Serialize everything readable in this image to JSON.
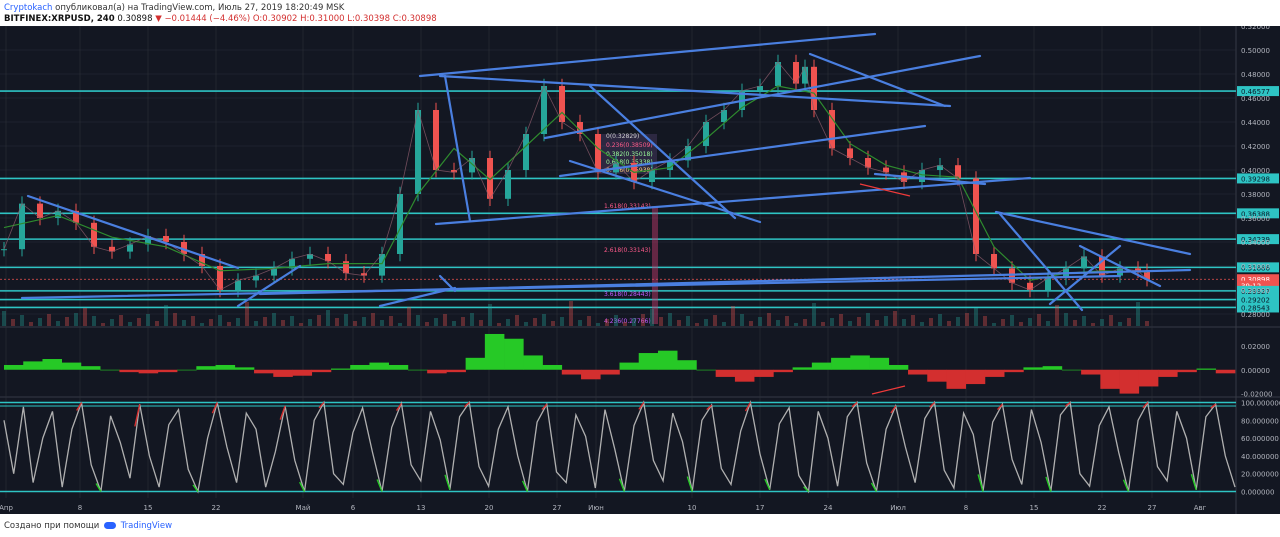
{
  "header": {
    "author": "Cryptokach",
    "published_text": "опубликовал(а) на TradingView.com, Июль 27, 2019 18:20:49 MSK",
    "symbol": "BITFINEX:XRPUSD, 240",
    "last": "0.30898",
    "change": "−0.01444 (−4.46%)",
    "ohlc": "O:0.30902 H:0.31000 L:0.30398 C:0.30898"
  },
  "footer": {
    "created_with": "Создано при помощи",
    "brand": "TradingView"
  },
  "colors": {
    "background": "#131722",
    "grid": "#2a2e39",
    "candle_up": "#26a69a",
    "candle_down": "#ef5350",
    "trendline": "#4a7fe0",
    "level": "#2ec4c4",
    "ma": "#2e8b2e",
    "macd_pos": "#26c926",
    "macd_neg": "#d32f2f",
    "stoch": "#b0b0b0"
  },
  "chart_data": [
    {
      "type": "line",
      "title": "BITFINEX:XRPUSD, 240",
      "ylim": [
        0.27,
        0.52
      ],
      "x_ticks": [
        "Апр",
        "8",
        "15",
        "22",
        "Май",
        "6",
        "13",
        "20",
        "27",
        "Июн",
        "10",
        "17",
        "24",
        "Июл",
        "8",
        "15",
        "22",
        "27",
        "Авг"
      ],
      "y_ticks": [
        "0.52000",
        "0.50000",
        "0.48000",
        "0.46000",
        "0.44000",
        "0.42000",
        "0.40000",
        "0.38000",
        "0.36000",
        "0.34000",
        "0.32000",
        "0.30000",
        "0.28000"
      ],
      "price_labels": [
        "0.46577",
        "0.39298",
        "0.36388",
        "0.34239",
        "0.31886",
        "0.30898",
        "39:12",
        "0.29927",
        "0.29202",
        "0.28543"
      ],
      "fib_labels": [
        "0(0.32829)",
        "0.236(0.38509)",
        "0.382(0.35018)",
        "0.618(0.35338)",
        "0.786(0.35938)",
        "1.618(0.33143)",
        "2.618(0.33143)",
        "4.236(0.27766)",
        "3.618(0.28443)"
      ],
      "close_points": [
        [
          0,
          0.334
        ],
        [
          2,
          0.372
        ],
        [
          4,
          0.36
        ],
        [
          6,
          0.366
        ],
        [
          8,
          0.356
        ],
        [
          10,
          0.336
        ],
        [
          12,
          0.332
        ],
        [
          14,
          0.338
        ],
        [
          16,
          0.345
        ],
        [
          18,
          0.34
        ],
        [
          20,
          0.33
        ],
        [
          22,
          0.32
        ],
        [
          24,
          0.3
        ],
        [
          26,
          0.308
        ],
        [
          28,
          0.312
        ],
        [
          30,
          0.318
        ],
        [
          32,
          0.326
        ],
        [
          34,
          0.33
        ],
        [
          36,
          0.324
        ],
        [
          38,
          0.314
        ],
        [
          40,
          0.312
        ],
        [
          42,
          0.33
        ],
        [
          44,
          0.38
        ],
        [
          46,
          0.45
        ],
        [
          48,
          0.4
        ],
        [
          50,
          0.398
        ],
        [
          52,
          0.41
        ],
        [
          54,
          0.376
        ],
        [
          56,
          0.4
        ],
        [
          58,
          0.43
        ],
        [
          60,
          0.47
        ],
        [
          62,
          0.44
        ],
        [
          64,
          0.43
        ],
        [
          66,
          0.398
        ],
        [
          68,
          0.406
        ],
        [
          70,
          0.39
        ],
        [
          72,
          0.4
        ],
        [
          74,
          0.408
        ],
        [
          76,
          0.42
        ],
        [
          78,
          0.44
        ],
        [
          80,
          0.45
        ],
        [
          82,
          0.466
        ],
        [
          84,
          0.47
        ],
        [
          86,
          0.49
        ],
        [
          88,
          0.472
        ],
        [
          89,
          0.486
        ],
        [
          90,
          0.45
        ],
        [
          92,
          0.418
        ],
        [
          94,
          0.41
        ],
        [
          96,
          0.402
        ],
        [
          98,
          0.398
        ],
        [
          100,
          0.39
        ],
        [
          102,
          0.4
        ],
        [
          104,
          0.404
        ],
        [
          106,
          0.393
        ],
        [
          108,
          0.33
        ],
        [
          110,
          0.318
        ],
        [
          112,
          0.306
        ],
        [
          114,
          0.3
        ],
        [
          116,
          0.31
        ],
        [
          118,
          0.318
        ],
        [
          120,
          0.328
        ],
        [
          122,
          0.312
        ],
        [
          124,
          0.318
        ],
        [
          126,
          0.316
        ],
        [
          127,
          0.309
        ]
      ],
      "ma_points": [
        [
          0,
          0.352
        ],
        [
          6,
          0.362
        ],
        [
          12,
          0.344
        ],
        [
          18,
          0.336
        ],
        [
          24,
          0.316
        ],
        [
          30,
          0.318
        ],
        [
          36,
          0.322
        ],
        [
          42,
          0.322
        ],
        [
          46,
          0.38
        ],
        [
          50,
          0.418
        ],
        [
          54,
          0.392
        ],
        [
          58,
          0.42
        ],
        [
          62,
          0.448
        ],
        [
          66,
          0.418
        ],
        [
          70,
          0.398
        ],
        [
          74,
          0.402
        ],
        [
          78,
          0.426
        ],
        [
          82,
          0.452
        ],
        [
          86,
          0.47
        ],
        [
          90,
          0.464
        ],
        [
          94,
          0.422
        ],
        [
          98,
          0.404
        ],
        [
          102,
          0.396
        ],
        [
          106,
          0.394
        ],
        [
          110,
          0.336
        ],
        [
          114,
          0.308
        ],
        [
          118,
          0.314
        ],
        [
          122,
          0.316
        ],
        [
          127,
          0.315
        ]
      ]
    },
    {
      "type": "bar",
      "title": "MACD histogram",
      "ylim": [
        -0.022,
        0.035
      ],
      "y_ticks": [
        "0.02000",
        "0.00000",
        "-0.02000"
      ],
      "values": [
        0.004,
        0.007,
        0.009,
        0.006,
        0.003,
        0.0,
        -0.002,
        -0.003,
        -0.002,
        0.0,
        0.003,
        0.004,
        0.002,
        -0.003,
        -0.006,
        -0.005,
        -0.002,
        0.001,
        0.004,
        0.006,
        0.004,
        0.0,
        -0.003,
        -0.002,
        0.01,
        0.03,
        0.026,
        0.012,
        0.004,
        -0.004,
        -0.008,
        -0.004,
        0.006,
        0.014,
        0.016,
        0.008,
        0.0,
        -0.006,
        -0.01,
        -0.006,
        -0.002,
        0.002,
        0.006,
        0.01,
        0.012,
        0.01,
        0.004,
        -0.004,
        -0.01,
        -0.016,
        -0.012,
        -0.006,
        -0.002,
        0.002,
        0.003,
        0.0,
        -0.004,
        -0.016,
        -0.02,
        -0.014,
        -0.006,
        -0.002,
        0.001,
        -0.003
      ]
    },
    {
      "type": "line",
      "title": "Stochastic RSI",
      "ylim": [
        -5,
        105
      ],
      "y_ticks": [
        "100.000000",
        "80.000000",
        "60.000000",
        "40.000000",
        "20.000000",
        "0.000000"
      ],
      "values": [
        80,
        20,
        95,
        10,
        60,
        90,
        5,
        70,
        100,
        30,
        0,
        85,
        55,
        15,
        98,
        40,
        5,
        75,
        92,
        25,
        0,
        60,
        100,
        50,
        10,
        88,
        70,
        5,
        45,
        96,
        35,
        0,
        80,
        100,
        20,
        8,
        66,
        94,
        45,
        0,
        72,
        99,
        30,
        12,
        90,
        58,
        2,
        84,
        100,
        28,
        6,
        70,
        95,
        40,
        0,
        78,
        98,
        22,
        10,
        86,
        62,
        4,
        92,
        48,
        0,
        74,
        100,
        35,
        12,
        88,
        56,
        0,
        80,
        97,
        26,
        8,
        68,
        100,
        42,
        2,
        76,
        94,
        18,
        0,
        90,
        60,
        6,
        84,
        100,
        32,
        0,
        70,
        96,
        50,
        10,
        82,
        100,
        24,
        4,
        88,
        64,
        0,
        78,
        98,
        36,
        8,
        92,
        55,
        0,
        86,
        100,
        20,
        6,
        74,
        95,
        44,
        0,
        80,
        100,
        28,
        12,
        90,
        60,
        2,
        84,
        98,
        40,
        5
      ]
    }
  ]
}
